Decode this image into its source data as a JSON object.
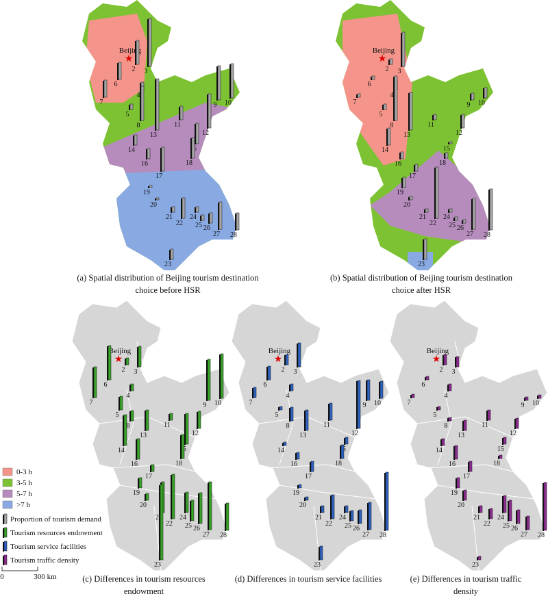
{
  "beijing": "Beijing",
  "cities": [
    "2",
    "3",
    "4",
    "5",
    "6",
    "7",
    "8",
    "9",
    "10",
    "11",
    "12",
    "13",
    "14",
    "15",
    "16",
    "17",
    "18",
    "19",
    "20",
    "21",
    "22",
    "23",
    "24",
    "25",
    "26",
    "27",
    "28"
  ],
  "maps": [
    {
      "caption": [
        "(a) Spatial distribution of Beijing tourism destination",
        "choice before HSR"
      ],
      "background": "zones-before",
      "bar_color": "#a6a6a6",
      "values": [
        35,
        70,
        12,
        8,
        25,
        25,
        50,
        50,
        50,
        20,
        50,
        75,
        15,
        30,
        15,
        35,
        30,
        3,
        3,
        8,
        30,
        15,
        8,
        8,
        15,
        40,
        25
      ]
    },
    {
      "caption": [
        "(b) Spatial distribution of Beijing tourism destination",
        "choice after HSR"
      ],
      "background": "zones-after",
      "bar_color": "#a6a6a6",
      "values": [
        8,
        50,
        15,
        8,
        5,
        5,
        65,
        10,
        15,
        8,
        20,
        55,
        25,
        3,
        10,
        10,
        8,
        15,
        5,
        5,
        75,
        30,
        5,
        5,
        5,
        45,
        60
      ]
    },
    {
      "caption": [
        "(c) Differences in tourism resources",
        "endowment"
      ],
      "background": "gray",
      "bar_color": "#3aa32a",
      "values": [
        10,
        30,
        10,
        20,
        50,
        45,
        15,
        60,
        65,
        10,
        25,
        30,
        45,
        45,
        30,
        10,
        35,
        15,
        10,
        45,
        65,
        110,
        30,
        30,
        45,
        70,
        40
      ]
    },
    {
      "caption": [
        "(d) Differences in tourism service facilities"
      ],
      "background": "gray",
      "bar_color": "#2f63c0",
      "values": [
        15,
        35,
        10,
        5,
        20,
        15,
        20,
        30,
        25,
        25,
        70,
        30,
        5,
        10,
        10,
        15,
        20,
        5,
        5,
        10,
        35,
        20,
        10,
        15,
        20,
        40,
        85
      ]
    },
    {
      "caption": [
        "(e) Differences in tourism traffic",
        "density"
      ],
      "background": "gray",
      "bar_color": "#8e2d92",
      "values": [
        15,
        15,
        10,
        5,
        5,
        5,
        5,
        5,
        5,
        15,
        15,
        15,
        10,
        10,
        20,
        15,
        5,
        15,
        15,
        10,
        15,
        5,
        25,
        30,
        20,
        20,
        70
      ]
    }
  ],
  "legend": {
    "zones": [
      {
        "label": "0-3 h",
        "color": "#f4948a"
      },
      {
        "label": "3-5 h",
        "color": "#7cc232"
      },
      {
        "label": "5-7 h",
        "color": "#b58cbc"
      },
      {
        "label": ">7 h",
        "color": "#88a9e2"
      }
    ],
    "factors": [
      {
        "label": "Proportion of tourism demand",
        "color": "#a6a6a6"
      },
      {
        "label": "Tourism resources endowment",
        "color": "#3aa32a"
      },
      {
        "label": "Tourism service facilities",
        "color": "#2f63c0"
      },
      {
        "label": "Tourism traffic density",
        "color": "#8e2d92"
      }
    ]
  },
  "scale": {
    "start": "0",
    "end": "300 km"
  }
}
